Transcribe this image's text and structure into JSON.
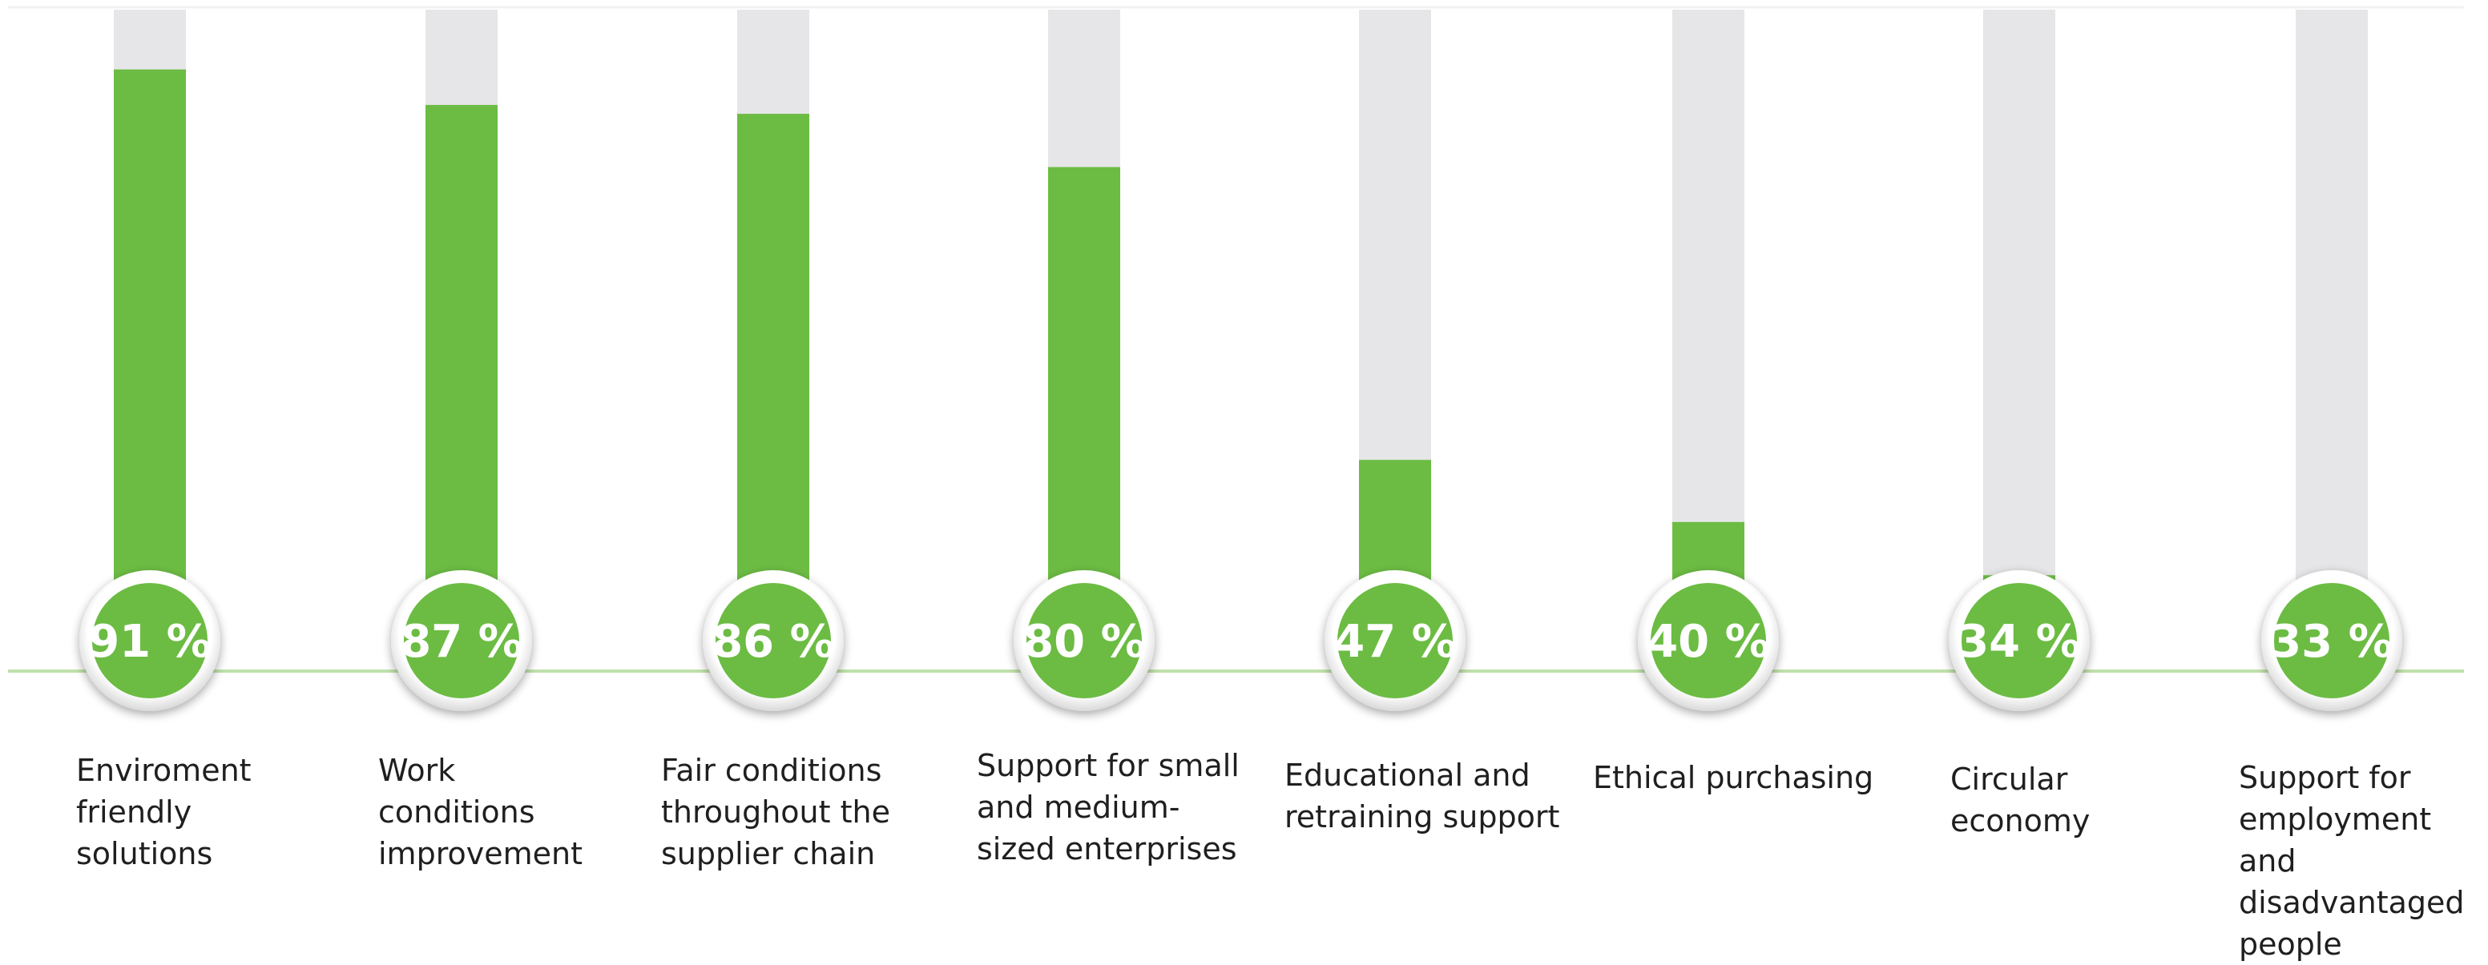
{
  "chart_data": {
    "type": "bar",
    "title": "",
    "xlabel": "",
    "ylabel": "",
    "ylim": [
      0,
      100
    ],
    "categories": [
      "Enviroment\nfriendly\nsolutions",
      "Work\nconditions\nimprovement",
      "Fair conditions\nthroughout the\nsupplier chain",
      "Support for small\nand medium-\nsized enterprises",
      "Educational and\nretraining support",
      "Ethical purchasing",
      "Circular\neconomy",
      "Support for\nemployment and\ndisadvantaged\npeople"
    ],
    "values": [
      91,
      87,
      86,
      80,
      47,
      40,
      34,
      33
    ],
    "value_labels": [
      "91 %",
      "87 %",
      "86 %",
      "80 %",
      "47 %",
      "40 %",
      "34 %",
      "33 %"
    ],
    "colors": {
      "fill": "#6cbc43",
      "track": "#e6e6e8",
      "baseline": "#bfe0ab",
      "label_text": "#ffffff"
    },
    "grid": false,
    "legend": "none"
  }
}
